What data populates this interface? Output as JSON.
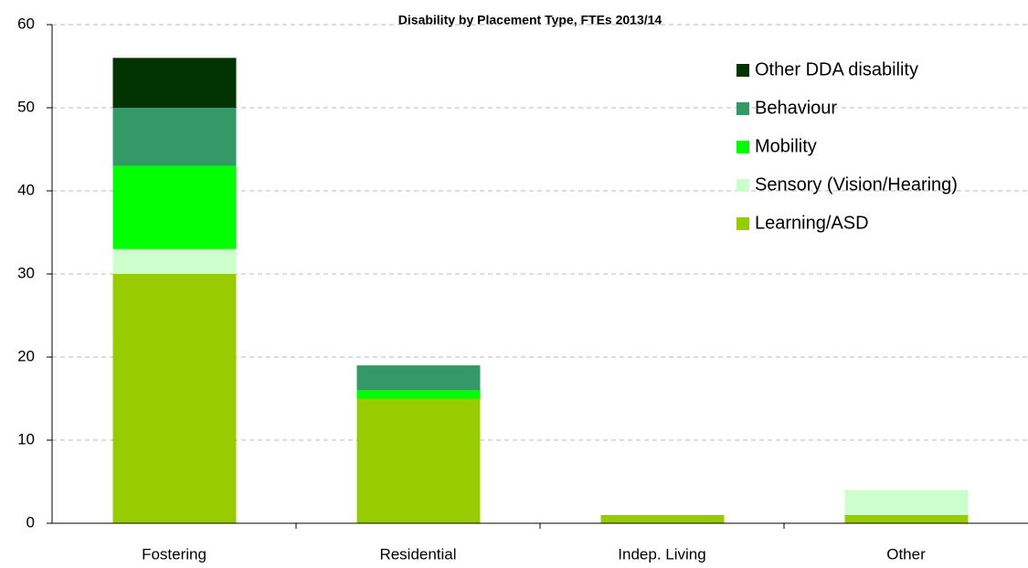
{
  "chart_data": {
    "type": "stacked_bar",
    "title": "Disability by Placement Type, FTEs 2013/14",
    "categories": [
      "Fostering",
      "Residential",
      "Indep. Living",
      "Other"
    ],
    "series": [
      {
        "name": "Learning/ASD",
        "color": "#99cc00",
        "values": [
          30,
          15,
          1,
          1
        ]
      },
      {
        "name": "Sensory (Vision/Hearing)",
        "color": "#ccffcc",
        "values": [
          3,
          0,
          0,
          3
        ]
      },
      {
        "name": "Mobility",
        "color": "#00ff00",
        "values": [
          10,
          1,
          0,
          0
        ]
      },
      {
        "name": "Behaviour",
        "color": "#339966",
        "values": [
          7,
          3,
          0,
          0
        ]
      },
      {
        "name": "Other DDA disability",
        "color": "#003300",
        "values": [
          6,
          0,
          0,
          0
        ]
      }
    ],
    "ylim": [
      0,
      60
    ],
    "yticks": [
      0,
      10,
      20,
      30,
      40,
      50,
      60
    ],
    "grid": true,
    "legend": "top-right"
  }
}
